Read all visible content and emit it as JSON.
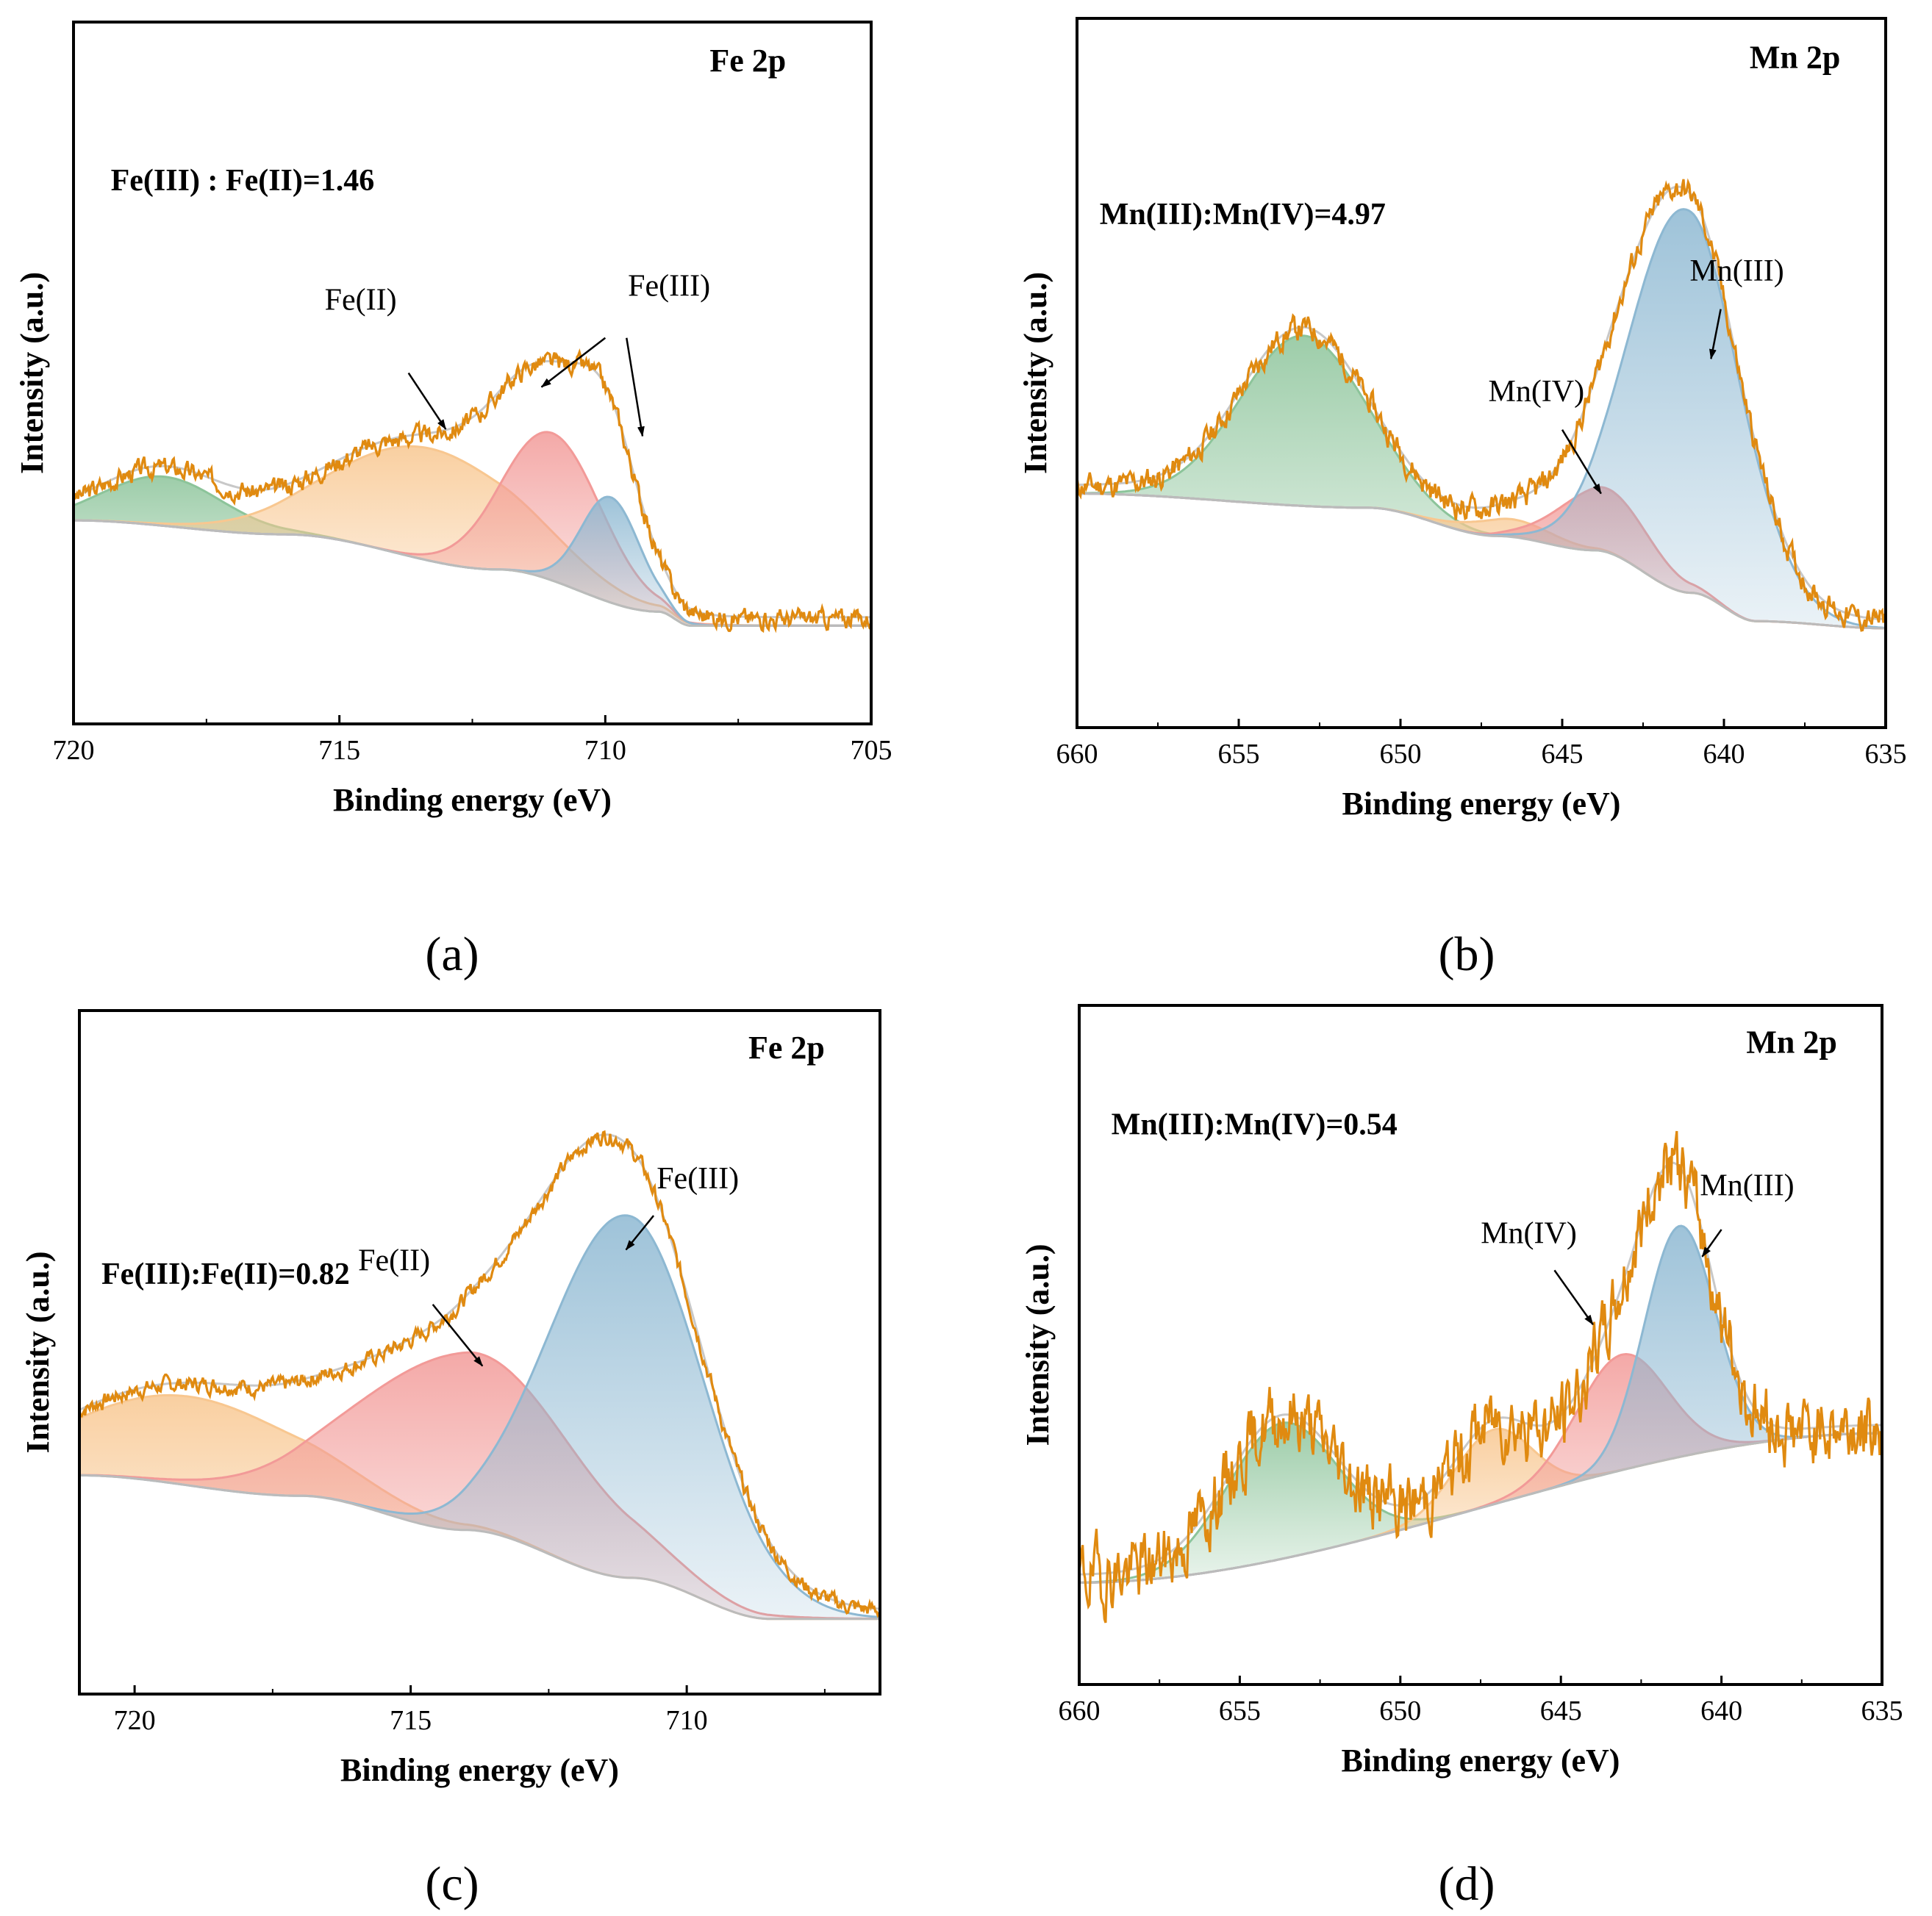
{
  "colors": {
    "data_line": "#E08A10",
    "envelope": "#C8C8C8",
    "baseline": "#BBBBBB",
    "green": "#8CC49A",
    "orange": "#F8C790",
    "red": "#F29A98",
    "blue": "#8DB8D2",
    "darkblue": "#6FA3C4"
  },
  "chart_data": [
    {
      "type": "area",
      "panel_label": "(a)",
      "title": "Fe 2p",
      "annotation": "Fe(III) : Fe(II)=1.46",
      "xlabel": "Binding energy (eV)",
      "ylabel": "Intensity (a.u.)",
      "x_reversed": true,
      "xlim": [
        720,
        705
      ],
      "xticks": [
        720,
        715,
        710,
        705
      ],
      "ylim": [
        0,
        100
      ],
      "baseline_points": [
        [
          720,
          29
        ],
        [
          716,
          27
        ],
        [
          712,
          22
        ],
        [
          709,
          16
        ],
        [
          708.4,
          14
        ],
        [
          705,
          14
        ]
      ],
      "components": [
        {
          "label": "",
          "center": 718.3,
          "height": 7,
          "fwhm": 2.6,
          "color": "green"
        },
        {
          "label": "Fe(II)",
          "center": 713.3,
          "height": 16,
          "fwhm": 4.2,
          "color": "orange"
        },
        {
          "label": "Fe(III)",
          "center": 711.0,
          "height": 21,
          "fwhm": 2.2,
          "color": "red"
        },
        {
          "label": "Fe(III)",
          "center": 709.9,
          "height": 15,
          "fwhm": 1.3,
          "color": "blue"
        }
      ],
      "peak_labels": [
        {
          "text": "Fe(II)",
          "x": 714.6,
          "y": 59,
          "arrows": [
            [
              713.7,
              50,
              713.0,
              42
            ]
          ]
        },
        {
          "text": "Fe(III)",
          "x": 708.8,
          "y": 61,
          "arrows": [
            [
              710.0,
              55,
              711.2,
              48
            ],
            [
              709.6,
              55,
              709.3,
              41
            ]
          ]
        }
      ],
      "ratio_pos": [
        719.3,
        76
      ],
      "title_pos": [
        706.6,
        93
      ],
      "noise_seed": 3,
      "noise_amp": 0.7
    },
    {
      "type": "area",
      "panel_label": "(b)",
      "title": "Mn 2p",
      "annotation": "Mn(III):Mn(IV)=4.97",
      "xlabel": "Binding energy (eV)",
      "ylabel": "Intensity (a.u.)",
      "x_reversed": true,
      "xlim": [
        660,
        635
      ],
      "xticks": [
        660,
        655,
        650,
        645,
        640,
        635
      ],
      "ylim": [
        0,
        100
      ],
      "baseline_points": [
        [
          660,
          33
        ],
        [
          651,
          31
        ],
        [
          647,
          27
        ],
        [
          644,
          25
        ],
        [
          641,
          19
        ],
        [
          639,
          15
        ],
        [
          635,
          14
        ]
      ],
      "components": [
        {
          "label": "",
          "center": 653.0,
          "height": 24,
          "fwhm": 4.6,
          "color": "green"
        },
        {
          "label": "",
          "center": 646.6,
          "height": 2.5,
          "fwhm": 3.0,
          "color": "orange"
        },
        {
          "label": "Mn(IV)",
          "center": 643.7,
          "height": 9,
          "fwhm": 3.2,
          "color": "red"
        },
        {
          "label": "Mn(III)",
          "center": 641.2,
          "height": 54,
          "fwhm": 4.0,
          "color": "blue"
        }
      ],
      "peak_labels": [
        {
          "text": "Mn(IV)",
          "x": 645.8,
          "y": 46,
          "arrows": [
            [
              645.0,
              42,
              643.8,
              33
            ]
          ]
        },
        {
          "text": "Mn(III)",
          "x": 639.6,
          "y": 63,
          "arrows": [
            [
              640.1,
              59,
              640.4,
              52
            ]
          ]
        }
      ],
      "ratio_pos": [
        659.3,
        71
      ],
      "title_pos": [
        636.4,
        93
      ],
      "noise_seed": 11,
      "noise_amp": 0.9
    },
    {
      "type": "area",
      "panel_label": "(c)",
      "title": "Fe 2p",
      "annotation": "Fe(III):Fe(II)=0.82",
      "xlabel": "Binding energy (eV)",
      "ylabel": "Intensity (a.u.)",
      "x_reversed": true,
      "xlim": [
        721,
        706.5
      ],
      "xticks": [
        720,
        715,
        710
      ],
      "ylim": [
        0,
        100
      ],
      "baseline_points": [
        [
          721,
          32
        ],
        [
          717,
          29
        ],
        [
          714,
          24
        ],
        [
          711,
          17
        ],
        [
          708.5,
          11
        ],
        [
          706.5,
          11
        ]
      ],
      "components": [
        {
          "label": "",
          "center": 719.0,
          "height": 13,
          "fwhm": 5.0,
          "color": "orange"
        },
        {
          "label": "Fe(II)",
          "center": 713.9,
          "height": 26,
          "fwhm": 4.6,
          "color": "red"
        },
        {
          "label": "Fe(III)",
          "center": 711.1,
          "height": 53,
          "fwhm": 3.3,
          "color": "blue"
        }
      ],
      "peak_labels": [
        {
          "text": "Fe(II)",
          "x": 715.3,
          "y": 62,
          "arrows": [
            [
              714.6,
              57,
              713.7,
              48
            ]
          ]
        },
        {
          "text": "Fe(III)",
          "x": 709.8,
          "y": 74,
          "arrows": [
            [
              710.6,
              70,
              711.1,
              65
            ]
          ]
        }
      ],
      "ratio_pos": [
        720.6,
        60
      ],
      "title_pos": [
        707.5,
        93
      ],
      "noise_seed": 7,
      "noise_amp": 0.6
    },
    {
      "type": "area",
      "panel_label": "(d)",
      "title": "Mn 2p",
      "annotation": "Mn(III):Mn(IV)=0.54",
      "xlabel": "Binding energy (eV)",
      "ylabel": "Intensity (a.u.)",
      "x_reversed": true,
      "xlim": [
        660,
        635
      ],
      "xticks": [
        660,
        655,
        650,
        645,
        640,
        635
      ],
      "ylim": [
        0,
        100
      ],
      "baseline_points": [
        [
          660,
          15
        ],
        [
          635,
          37
        ]
      ],
      "components": [
        {
          "label": "",
          "center": 653.7,
          "height": 20,
          "fwhm": 4.0,
          "color": "green"
        },
        {
          "label": "",
          "center": 647.1,
          "height": 11,
          "fwhm": 2.8,
          "color": "orange"
        },
        {
          "label": "Mn(IV)",
          "center": 643.1,
          "height": 17,
          "fwhm": 3.3,
          "color": "red"
        },
        {
          "label": "Mn(III)",
          "center": 641.3,
          "height": 34,
          "fwhm": 2.6,
          "color": "blue"
        }
      ],
      "peak_labels": [
        {
          "text": "Mn(IV)",
          "x": 646.0,
          "y": 65,
          "arrows": [
            [
              645.2,
              61,
              644.0,
              53
            ]
          ]
        },
        {
          "text": "Mn(III)",
          "x": 639.2,
          "y": 72,
          "arrows": [
            [
              640.0,
              67,
              640.6,
              63
            ]
          ]
        }
      ],
      "ratio_pos": [
        659.0,
        81
      ],
      "title_pos": [
        636.4,
        93
      ],
      "noise_seed": 19,
      "noise_amp": 2.6
    }
  ]
}
